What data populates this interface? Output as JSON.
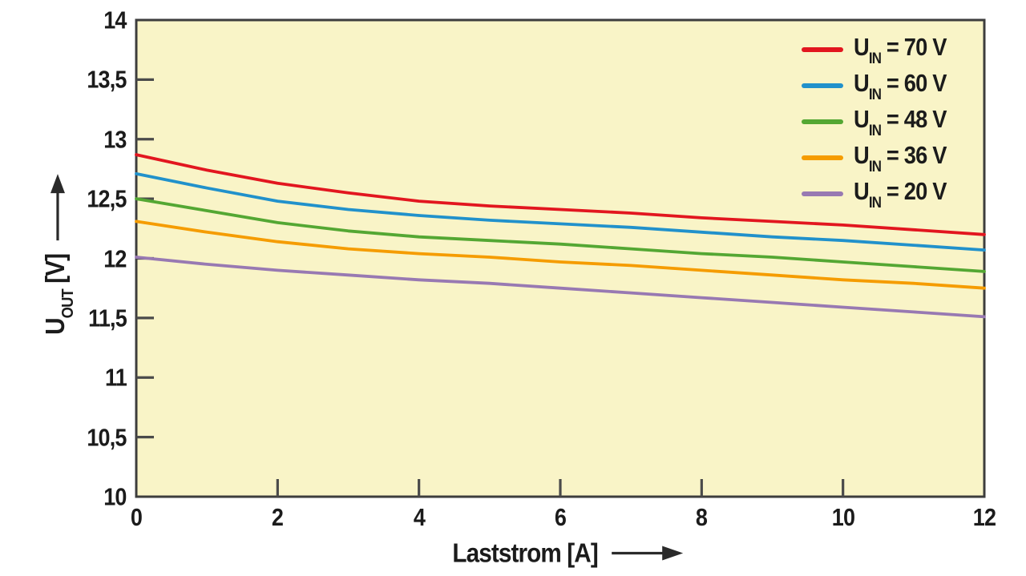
{
  "style": {
    "page_background": "#ffffff",
    "plot_background": "#f9f4c7",
    "frame_color": "#3d3d3d",
    "tick_color": "#4a4a4a",
    "text_color": "#1b1b1b",
    "arrow_color": "#2a2a2a"
  },
  "chart_data": {
    "type": "line",
    "title": "",
    "xlabel": "Laststrom [A]",
    "ylabel": "UOUT [V]",
    "ylabel_parts": {
      "symbol": "U",
      "subscript": "OUT",
      "unit": "[V]"
    },
    "xlim": [
      0,
      12
    ],
    "ylim": [
      10,
      14
    ],
    "grid": false,
    "legend_position": "top-right",
    "x_ticks": [
      0,
      2,
      4,
      6,
      8,
      10,
      12
    ],
    "x_tick_labels": [
      "0",
      "2",
      "4",
      "6",
      "8",
      "10",
      "12"
    ],
    "y_ticks": [
      10,
      10.5,
      11,
      11.5,
      12,
      12.5,
      13,
      13.5,
      14
    ],
    "y_tick_labels": [
      "10",
      "10,5",
      "11",
      "11,5",
      "12",
      "12,5",
      "13",
      "13,5",
      "14"
    ],
    "x": [
      0,
      1,
      2,
      3,
      4,
      5,
      6,
      7,
      8,
      9,
      10,
      11,
      12
    ],
    "series": [
      {
        "name": "UIN = 70 V",
        "symbol": "U",
        "symbol_sub": "IN",
        "value_text": "= 70 V",
        "color": "#e2161f",
        "values": [
          12.87,
          12.74,
          12.63,
          12.55,
          12.48,
          12.44,
          12.41,
          12.38,
          12.34,
          12.31,
          12.28,
          12.24,
          12.2
        ]
      },
      {
        "name": "UIN = 60 V",
        "symbol": "U",
        "symbol_sub": "IN",
        "value_text": "= 60 V",
        "color": "#2191cb",
        "values": [
          12.71,
          12.59,
          12.48,
          12.41,
          12.36,
          12.32,
          12.29,
          12.26,
          12.22,
          12.18,
          12.15,
          12.11,
          12.07
        ]
      },
      {
        "name": "UIN = 48 V",
        "symbol": "U",
        "symbol_sub": "IN",
        "value_text": "= 48 V",
        "color": "#54a733",
        "values": [
          12.5,
          12.4,
          12.3,
          12.23,
          12.18,
          12.15,
          12.12,
          12.08,
          12.04,
          12.01,
          11.97,
          11.93,
          11.89
        ]
      },
      {
        "name": "UIN = 36 V",
        "symbol": "U",
        "symbol_sub": "IN",
        "value_text": "= 36 V",
        "color": "#f59c00",
        "values": [
          12.31,
          12.22,
          12.14,
          12.08,
          12.04,
          12.01,
          11.97,
          11.94,
          11.9,
          11.86,
          11.82,
          11.79,
          11.75
        ]
      },
      {
        "name": "UIN = 20 V",
        "symbol": "U",
        "symbol_sub": "IN",
        "value_text": "= 20 V",
        "color": "#9879b2",
        "values": [
          12.01,
          11.95,
          11.9,
          11.86,
          11.82,
          11.79,
          11.75,
          11.71,
          11.67,
          11.63,
          11.59,
          11.55,
          11.51
        ]
      }
    ]
  }
}
